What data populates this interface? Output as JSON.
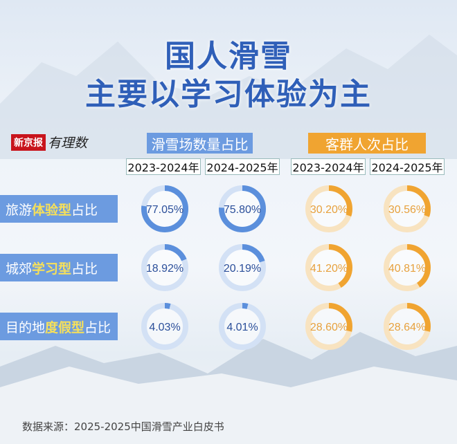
{
  "title": {
    "line1": "国人滑雪",
    "line2": "主要以学习体验为主"
  },
  "logo": {
    "brand": "新京报",
    "sub": "有理数"
  },
  "colors": {
    "blue": "#5b8fdc",
    "blue_light": "#d3e1f5",
    "orange": "#f0a431",
    "orange_light": "#f8e3c0",
    "blue_text": "#2b4f9a",
    "orange_text": "#e7a13d"
  },
  "groups": [
    {
      "label": "滑雪场数量占比",
      "years": [
        "2023-2024年",
        "2024-2025年"
      ]
    },
    {
      "label": "客群人次占比",
      "years": [
        "2023-2024年",
        "2024-2025年"
      ]
    }
  ],
  "rows": [
    {
      "pre": "旅游",
      "hl": "体验型",
      "post": "占比"
    },
    {
      "pre": "城郊",
      "hl": "学习型",
      "post": "占比"
    },
    {
      "pre": "目的地",
      "hl": "度假型",
      "post": "占比"
    }
  ],
  "chart_data": {
    "type": "donut-grid",
    "columns": [
      "滑雪场数量占比 2023-2024年",
      "滑雪场数量占比 2024-2025年",
      "客群人次占比 2023-2024年",
      "客群人次占比 2024-2025年"
    ],
    "rows": [
      "旅游体验型占比",
      "城郊学习型占比",
      "目的地度假型占比"
    ],
    "values": [
      [
        77.05,
        75.8,
        30.2,
        30.56
      ],
      [
        18.92,
        20.19,
        41.2,
        40.81
      ],
      [
        4.03,
        4.01,
        28.6,
        28.64
      ]
    ],
    "labels": [
      [
        "77.05%",
        "75.80%",
        "30.20%",
        "30.56%"
      ],
      [
        "18.92%",
        "20.19%",
        "41.20%",
        "40.81%"
      ],
      [
        "4.03%",
        "4.01%",
        "28.60%",
        "28.64%"
      ]
    ]
  },
  "source": "数据来源：2025-2025中国滑雪产业白皮书"
}
